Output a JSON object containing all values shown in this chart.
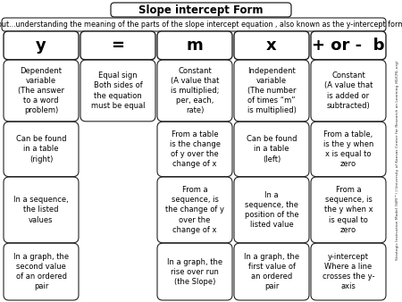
{
  "title": "Slope intercept Form",
  "subtitle": "is about...understanding the meaning of the parts of the slope intercept equation , also known as the y-intercept form.",
  "side_text": "Strategic Instruction Model (SIM™) | University of Kansas Center for Research on Learning (KUCRL.org)",
  "equation_row": [
    "y",
    "=",
    "m",
    "x",
    "+ or -  b"
  ],
  "row1": [
    "Dependent\nvariable\n(The answer\nto a word\nproblem)",
    "Equal sign\nBoth sides of\nthe equation\nmust be equal",
    "Constant\n(A value that\nis multiplied;\nper, each,\nrate)",
    "Independent\nvariable\n(The number\nof times “m”\nis multiplied)",
    "Constant\n(A value that\nis added or\nsubtracted)"
  ],
  "row2": [
    "Can be found\nin a table\n(right)",
    "",
    "From a table\nis the change\nof y over the\nchange of x",
    "Can be found\nin a table\n(left)",
    "From a table,\nis the y when\nx is equal to\nzero"
  ],
  "row3": [
    "In a sequence,\nthe listed\nvalues",
    "",
    "From a\nsequence, is\nthe change of y\nover the\nchange of x",
    "In a\nsequence, the\nposition of the\nlisted value",
    "From a\nsequence, is\nthe y when x\nis equal to\nzero"
  ],
  "row4": [
    "In a graph, the\nsecond value\nof an ordered\npair",
    "",
    "In a graph, the\nrise over run\n(the Slope)",
    "In a graph, the\nfirst value of\nan ordered\npair",
    "y-intercept\nWhere a line\ncrosses the y-\naxis"
  ],
  "bg_color": "#ffffff",
  "box_edge_color": "#222222",
  "text_color": "#000000",
  "title_fontsize": 8.5,
  "subtitle_fontsize": 5.8,
  "eq_fontsize": 13,
  "cell_fontsize": 6.0,
  "side_fontsize": 3.2
}
